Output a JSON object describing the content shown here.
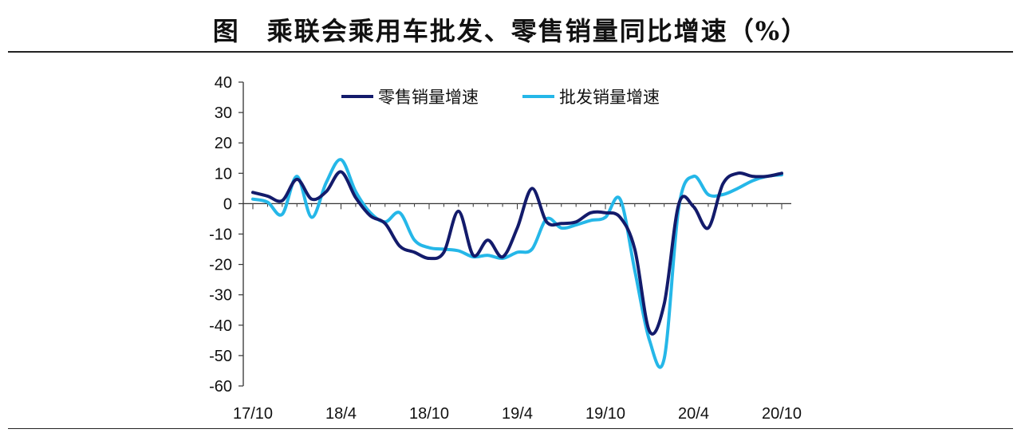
{
  "figure": {
    "title": "图　乘联会乘用车批发、零售销量同比增速（%）"
  },
  "chart_data": {
    "type": "line",
    "title": "图　乘联会乘用车批发、零售销量同比增速（%）",
    "xlabel": "",
    "ylabel": "",
    "ylim": [
      -60,
      40
    ],
    "yticks": [
      40,
      30,
      20,
      10,
      0,
      -10,
      -20,
      -30,
      -40,
      -50,
      -60
    ],
    "xtick_labels": [
      "17/10",
      "18/4",
      "18/10",
      "19/4",
      "19/10",
      "20/4",
      "20/10"
    ],
    "xtick_index": [
      0,
      6,
      12,
      18,
      24,
      30,
      36
    ],
    "x": [
      "17/10",
      "17/11",
      "17/12",
      "18/1",
      "18/2",
      "18/3",
      "18/4",
      "18/5",
      "18/6",
      "18/7",
      "18/8",
      "18/9",
      "18/10",
      "18/11",
      "18/12",
      "19/1",
      "19/2",
      "19/3",
      "19/4",
      "19/5",
      "19/6",
      "19/7",
      "19/8",
      "19/9",
      "19/10",
      "19/11",
      "19/12",
      "20/1",
      "20/2",
      "20/3",
      "20/4",
      "20/5",
      "20/6",
      "20/7",
      "20/8",
      "20/9",
      "20/10"
    ],
    "legend_position": "top-center",
    "grid": false,
    "series": [
      {
        "name": "零售销量增速",
        "color": "#131B6B",
        "values": [
          3.7,
          2.5,
          1.0,
          8.0,
          1.5,
          4.0,
          10.5,
          2.0,
          -4.0,
          -6.5,
          -14.0,
          -16.0,
          -18.0,
          -16.0,
          -2.5,
          -17.0,
          -12.0,
          -17.5,
          -8.0,
          5.0,
          -6.0,
          -6.5,
          -6.0,
          -3.0,
          -3.0,
          -4.5,
          -15.0,
          -42.0,
          -33.0,
          0.0,
          -1.0,
          -8.0,
          6.5,
          10.0,
          9.0,
          9.0,
          10.0
        ]
      },
      {
        "name": "批发销量增速",
        "color": "#25B7E8",
        "values": [
          1.5,
          0.5,
          -3.5,
          9.0,
          -4.5,
          7.0,
          14.5,
          4.0,
          -3.0,
          -6.0,
          -3.0,
          -12.0,
          -14.5,
          -15.0,
          -15.5,
          -17.5,
          -17.0,
          -18.0,
          -16.0,
          -15.0,
          -5.0,
          -8.0,
          -7.0,
          -5.5,
          -4.5,
          1.5,
          -22.0,
          -45.0,
          -51.0,
          -1.0,
          9.0,
          3.0,
          3.0,
          5.0,
          7.5,
          9.0,
          9.5
        ]
      }
    ]
  }
}
